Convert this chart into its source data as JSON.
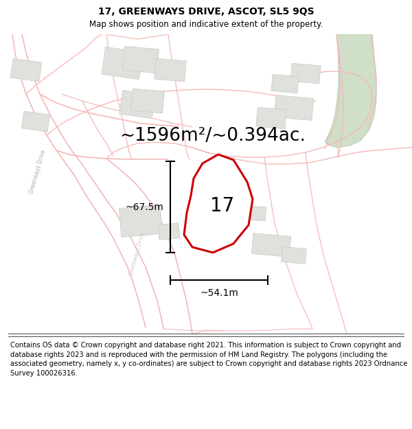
{
  "title": "17, GREENWAYS DRIVE, ASCOT, SL5 9QS",
  "subtitle": "Map shows position and indicative extent of the property.",
  "area_text": "~1596m²/~0.394ac.",
  "label_17": "17",
  "dim_height": "~67.5m",
  "dim_width": "~54.1m",
  "footer": "Contains OS data © Crown copyright and database right 2021. This information is subject to Crown copyright and database rights 2023 and is reproduced with the permission of HM Land Registry. The polygons (including the associated geometry, namely x, y co-ordinates) are subject to Crown copyright and database rights 2023 Ordnance Survey 100026316.",
  "map_bg": "#f9f9f7",
  "road_color": "#f5b8b8",
  "road_lw": 1.0,
  "building_fill": "#e0e0dc",
  "building_edge": "#c8c8c4",
  "green_fill": "#d0dfc8",
  "green_edge": "#b0c8a8",
  "plot_color": "#cc0000",
  "plot_lw": 2.2,
  "black": "#000000",
  "gray_text": "#aaaaaa",
  "title_fontsize": 10,
  "subtitle_fontsize": 8.5,
  "area_fontsize": 19,
  "label_fontsize": 20,
  "dim_fontsize": 10,
  "footer_fontsize": 7.2
}
